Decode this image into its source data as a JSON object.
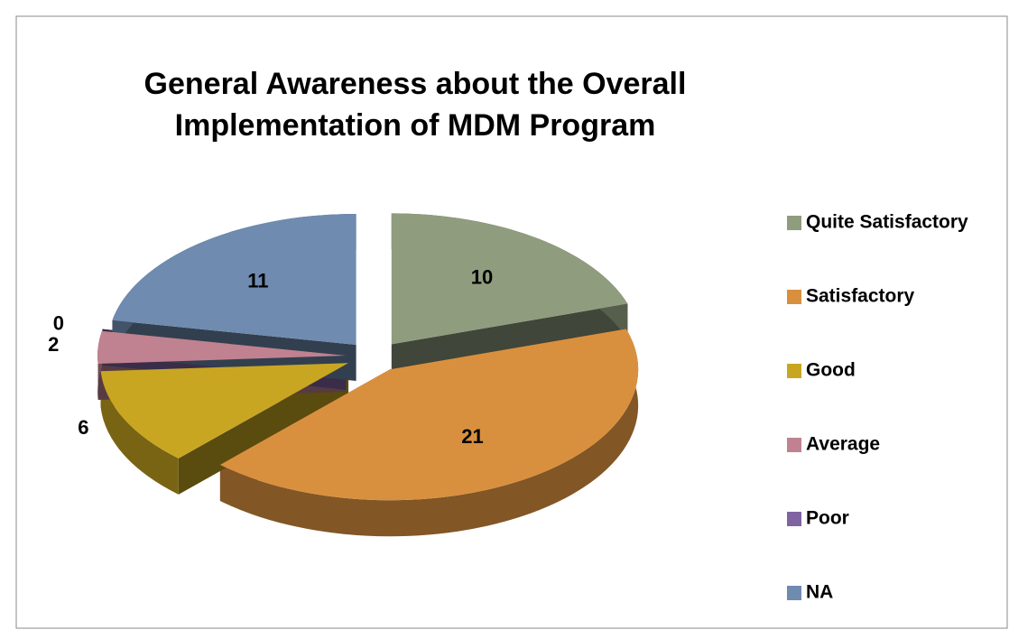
{
  "chart_data": {
    "type": "pie3d",
    "title": "General Awareness about the Overall Implementation of MDM Program",
    "categories": [
      "Quite Satisfactory",
      "Satisfactory",
      "Good",
      "Average",
      "Poor",
      "NA"
    ],
    "values": [
      10,
      21,
      6,
      2,
      0,
      11
    ],
    "colors": [
      "#8f9c7e",
      "#d9903e",
      "#c9a622",
      "#c08290",
      "#8064a2",
      "#6f8bb0"
    ],
    "legend": "right"
  }
}
